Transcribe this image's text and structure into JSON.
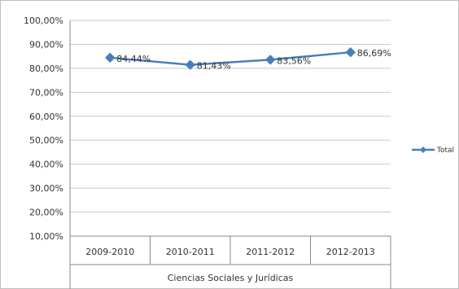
{
  "chart_data": {
    "type": "line",
    "title": "",
    "xlabel": "",
    "ylabel": "",
    "categories": [
      "2009-2010",
      "2010-2011",
      "2011-2012",
      "2012-2013"
    ],
    "category_group": "Ciencias Sociales y Jurídicas",
    "series": [
      {
        "name": "Total",
        "values": [
          84.44,
          81.43,
          83.56,
          86.69
        ],
        "labels": [
          "84,44%",
          "81,43%",
          "83,56%",
          "86,69%"
        ],
        "color": "#4a7ebb",
        "marker": "diamond"
      }
    ],
    "yticks": [
      "100,00%",
      "90,00%",
      "80,00%",
      "70,00%",
      "60,00%",
      "50,00%",
      "40,00%",
      "30,00%",
      "20,00%",
      "10,00%"
    ],
    "ytick_values": [
      100,
      90,
      80,
      70,
      60,
      50,
      40,
      30,
      20,
      10
    ],
    "ylim": [
      10,
      100
    ],
    "grid": true,
    "legend_position": "right"
  },
  "colors": {
    "line": "#4a7ebb",
    "grid": "#c8c8c8",
    "axis": "#888888",
    "frame": "#bfbfbf"
  }
}
